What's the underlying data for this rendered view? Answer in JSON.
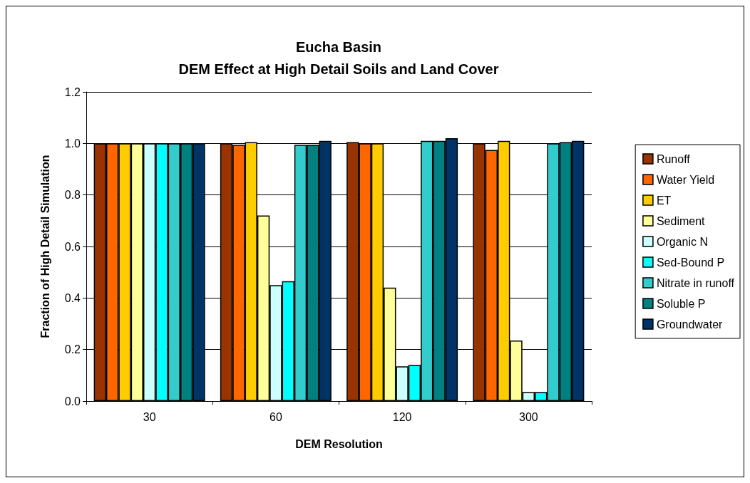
{
  "chart_data": {
    "type": "bar",
    "title": "Eucha Basin\nDEM Effect at High Detail Soils and Land Cover",
    "xlabel": "DEM Resolution",
    "ylabel": "Fraction of High Detail Simulation",
    "categories": [
      "30",
      "60",
      "120",
      "300"
    ],
    "series": [
      {
        "name": "Runoff",
        "color": "#993300",
        "values": [
          1.0,
          1.0,
          1.005,
          1.0
        ]
      },
      {
        "name": "Water Yield",
        "color": "#ff6600",
        "values": [
          1.0,
          0.995,
          1.0,
          0.975
        ]
      },
      {
        "name": "ET",
        "color": "#ffcc00",
        "values": [
          1.0,
          1.005,
          1.0,
          1.01
        ]
      },
      {
        "name": "Sediment",
        "color": "#ffff99",
        "values": [
          1.0,
          0.72,
          0.44,
          0.235
        ]
      },
      {
        "name": "Organic N",
        "color": "#ccffff",
        "values": [
          1.0,
          0.45,
          0.135,
          0.035
        ]
      },
      {
        "name": "Sed-Bound P",
        "color": "#00ffff",
        "values": [
          1.0,
          0.465,
          0.14,
          0.035
        ]
      },
      {
        "name": "Nitrate in runoff",
        "color": "#33cccc",
        "values": [
          1.0,
          0.995,
          1.01,
          1.0
        ]
      },
      {
        "name": "Soluble P",
        "color": "#008080",
        "values": [
          1.0,
          0.995,
          1.01,
          1.005
        ]
      },
      {
        "name": "Groundwater",
        "color": "#003366",
        "values": [
          1.0,
          1.01,
          1.02,
          1.01
        ]
      }
    ],
    "ylim": [
      0,
      1.2
    ],
    "yticks": [
      {
        "value": 0,
        "label": "0.0"
      },
      {
        "value": 0.2,
        "label": "0.2"
      },
      {
        "value": 0.4,
        "label": "0.4"
      },
      {
        "value": 0.6,
        "label": "0.6"
      },
      {
        "value": 0.8,
        "label": "0.8"
      },
      {
        "value": 1.0,
        "label": "1.0"
      },
      {
        "value": 1.2,
        "label": "1.2"
      }
    ],
    "grid": "y",
    "legend": "right"
  }
}
